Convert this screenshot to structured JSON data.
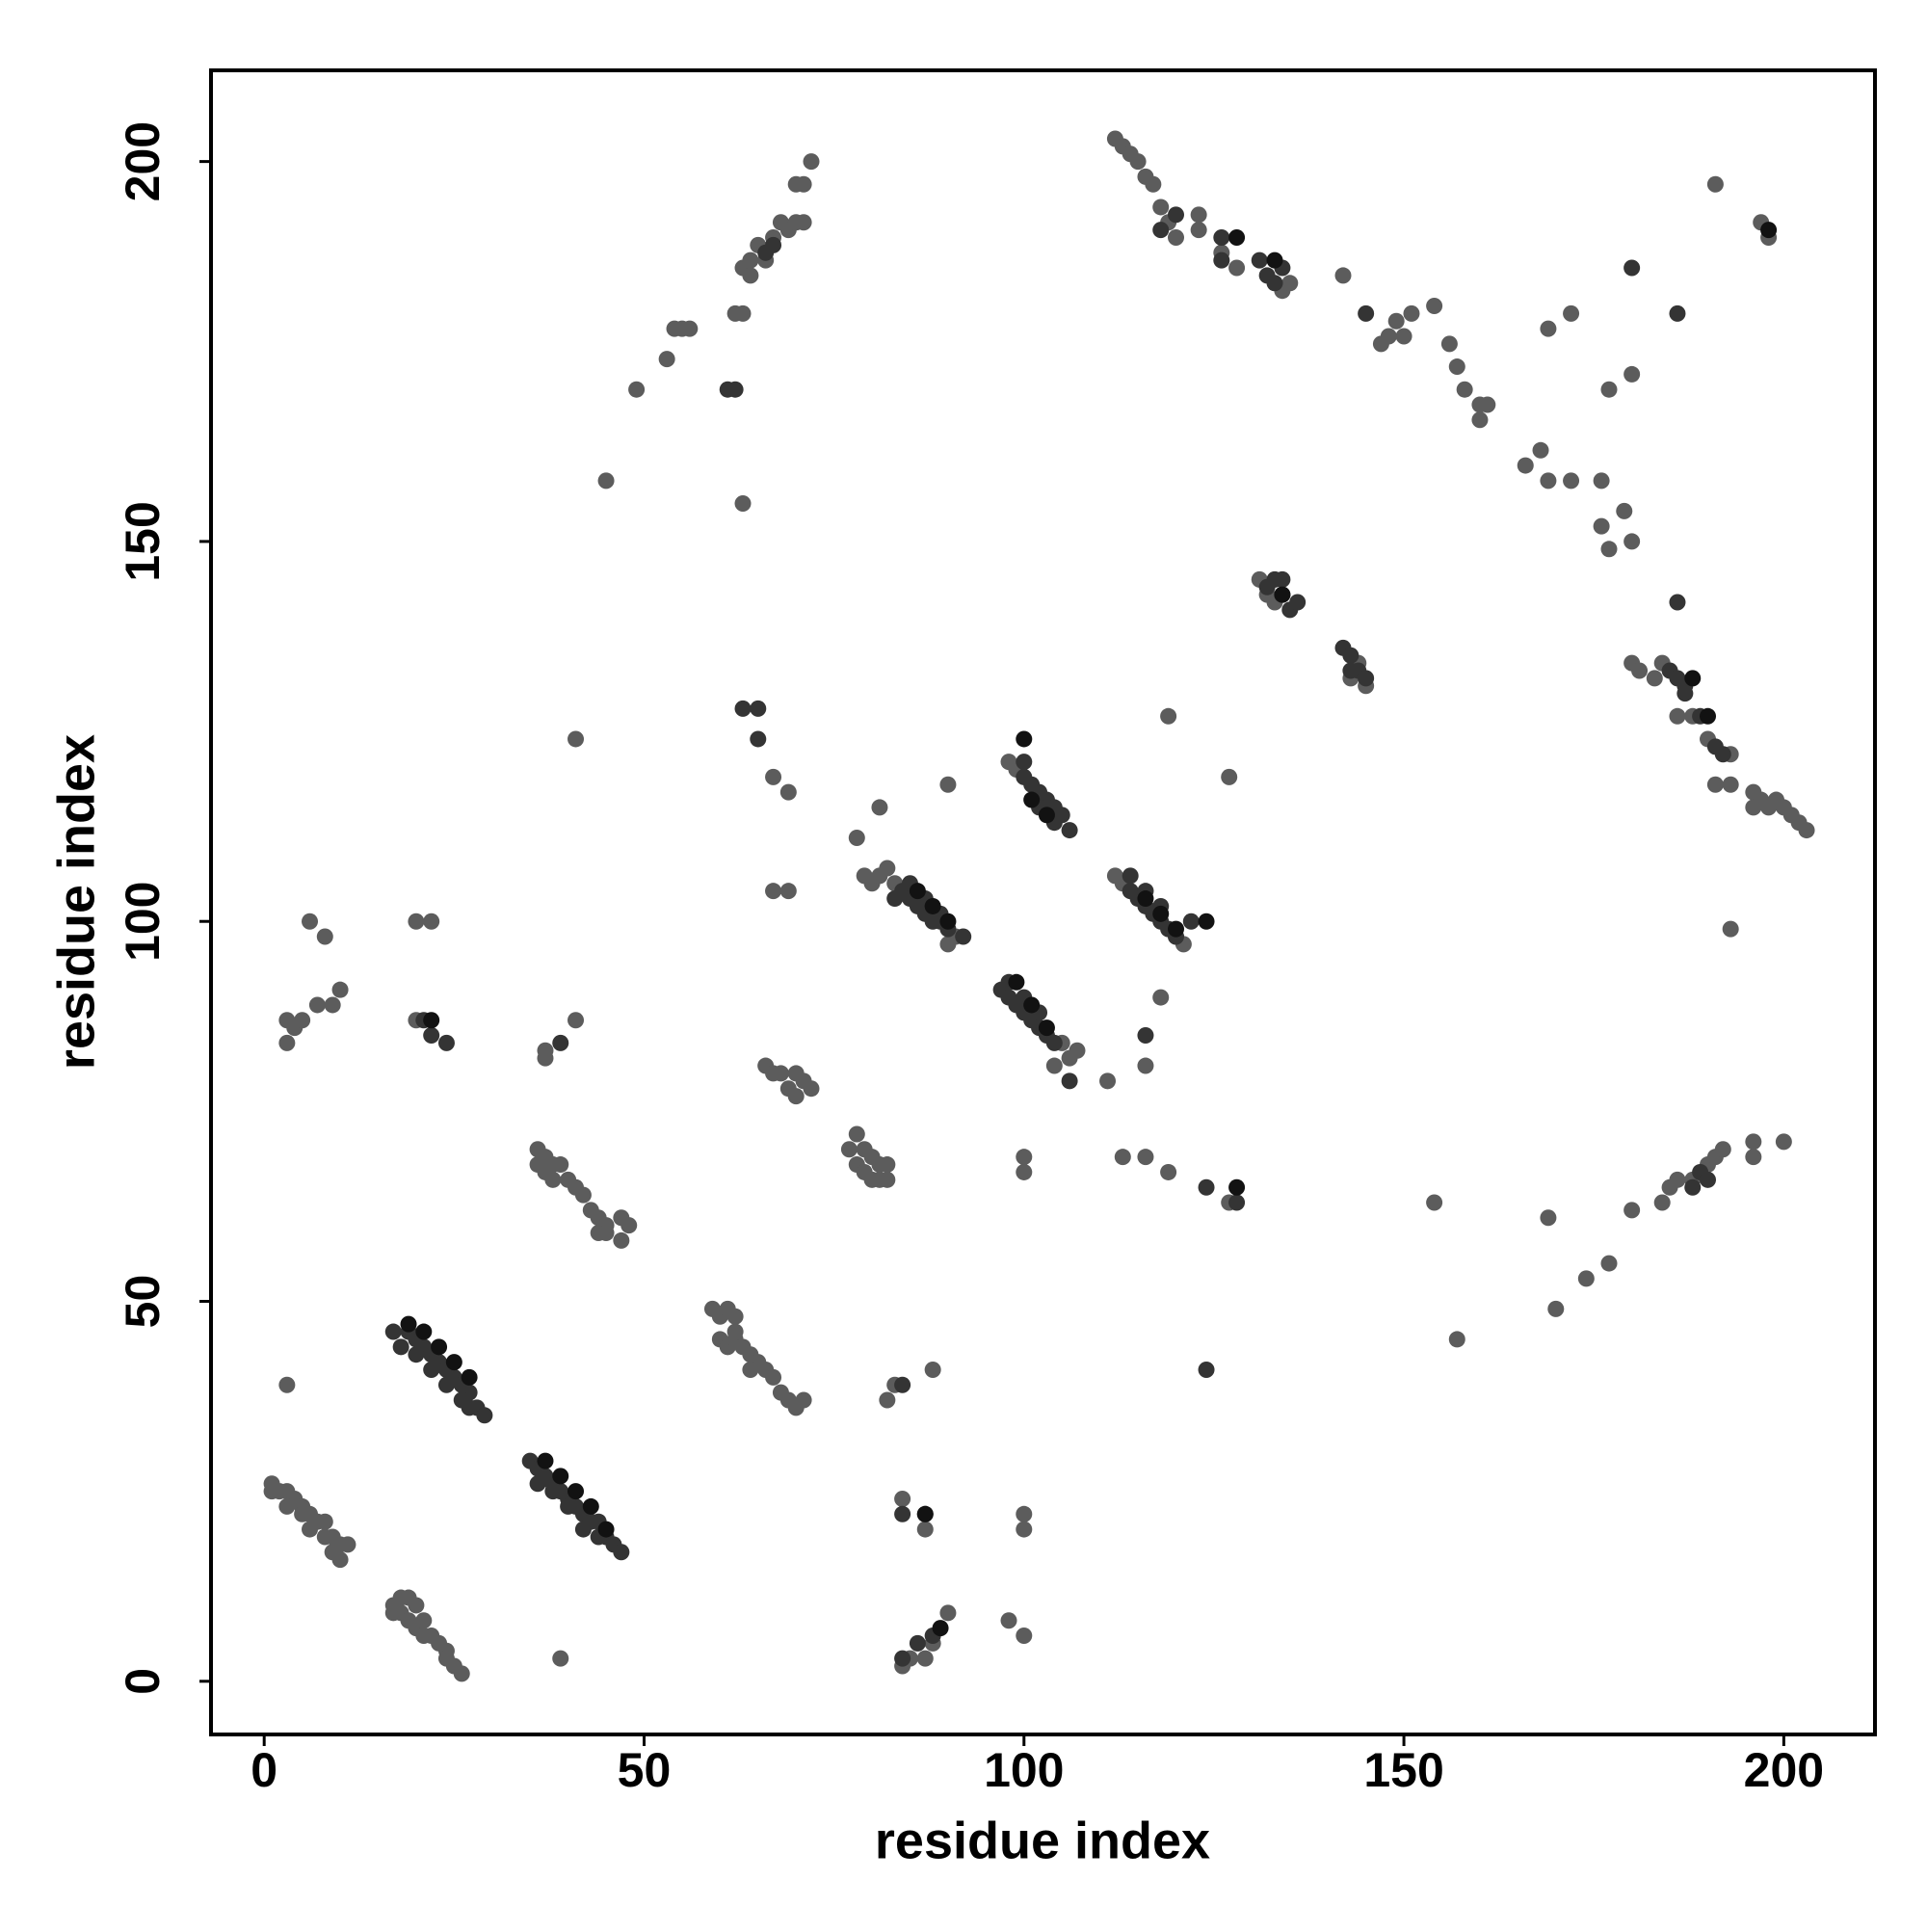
{
  "chart_data": {
    "type": "scatter",
    "x_label": "residue index",
    "y_label": "residue index",
    "xlim": [
      -7,
      212
    ],
    "ylim": [
      -7,
      212
    ],
    "xticks": [
      0,
      50,
      100,
      150,
      200
    ],
    "yticks": [
      0,
      50,
      100,
      150,
      200
    ],
    "grid": false,
    "series": [
      {
        "color": "#5c5c5c",
        "x": [
          1,
          2,
          3,
          4,
          5,
          6,
          7,
          8,
          9,
          10,
          1,
          3,
          5,
          6,
          8,
          9,
          10,
          11,
          17,
          18,
          19,
          20,
          18,
          19,
          20,
          21,
          22,
          23,
          24,
          25,
          26,
          17,
          21,
          24,
          36,
          37,
          38,
          39,
          40,
          41,
          42,
          43,
          44,
          45,
          47,
          48,
          47,
          36,
          38,
          37,
          44,
          45,
          59,
          60,
          61,
          62,
          60,
          61,
          62,
          63,
          64,
          65,
          66,
          67,
          68,
          69,
          70,
          71,
          62,
          64,
          49,
          53,
          54,
          55,
          56,
          62,
          63,
          63,
          64,
          64,
          66,
          67,
          68,
          69,
          70,
          71,
          70,
          71,
          72,
          65,
          3,
          4,
          3,
          5,
          7,
          9,
          10,
          6,
          8,
          20,
          22,
          20,
          37,
          37,
          41,
          41,
          45,
          39,
          3,
          63,
          67,
          69,
          67,
          69,
          66,
          67,
          68,
          69,
          70,
          71,
          72,
          70,
          77,
          78,
          79,
          80,
          81,
          82,
          78,
          79,
          80,
          81,
          82,
          98,
          99,
          81,
          78,
          90,
          121,
          120,
          113,
          112,
          112,
          113,
          114,
          115,
          116,
          117,
          118,
          119,
          120,
          123,
          123,
          126,
          128,
          134,
          135,
          142,
          147,
          149,
          151,
          154,
          148,
          150,
          156,
          157,
          158,
          160,
          161,
          160,
          166,
          168,
          169,
          172,
          176,
          176,
          177,
          179,
          180,
          169,
          172,
          177,
          180,
          191,
          197,
          198,
          180,
          181,
          183,
          184,
          186,
          188,
          190,
          193,
          191,
          193,
          196,
          197,
          198,
          199,
          200,
          201,
          202,
          203,
          196,
          157,
          170,
          174,
          177,
          169,
          180,
          184,
          185,
          186,
          188,
          190,
          191,
          192,
          196,
          196,
          200,
          119,
          127,
          118,
          116,
          111,
          113,
          116,
          119,
          100,
          100,
          127,
          154,
          193,
          98,
          100,
          90,
          84,
          85,
          87,
          88,
          100,
          100,
          82,
          83,
          84,
          87,
          88,
          131,
          132,
          133,
          144,
          143,
          145,
          105,
          106,
          107,
          104,
          79,
          80,
          81,
          82,
          83,
          90,
          91
        ],
        "y": [
          26,
          25,
          25,
          24,
          23,
          22,
          21,
          21,
          19,
          18,
          25,
          23,
          22,
          20,
          19,
          17,
          16,
          18,
          10,
          11,
          11,
          10,
          9,
          8,
          7,
          8,
          6,
          5,
          4,
          2,
          1,
          9,
          6,
          3,
          70,
          69,
          68,
          68,
          66,
          65,
          64,
          62,
          61,
          60,
          61,
          60,
          58,
          68,
          66,
          67,
          59,
          59,
          49,
          48,
          49,
          48,
          45,
          44,
          45,
          44,
          43,
          42,
          41,
          40,
          38,
          37,
          36,
          37,
          46,
          41,
          170,
          174,
          178,
          178,
          178,
          180,
          180,
          186,
          185,
          187,
          187,
          190,
          192,
          191,
          192,
          192,
          197,
          197,
          200,
          189,
          84,
          86,
          87,
          87,
          89,
          89,
          91,
          100,
          98,
          100,
          100,
          87,
          82,
          83,
          87,
          124,
          158,
          3,
          39,
          155,
          104,
          104,
          119,
          117,
          81,
          80,
          80,
          78,
          80,
          79,
          78,
          77,
          70,
          72,
          70,
          69,
          68,
          68,
          68,
          67,
          66,
          66,
          66,
          121,
          120,
          115,
          111,
          118,
          97,
          98,
          105,
          106,
          203,
          202,
          201,
          200,
          198,
          197,
          194,
          192,
          190,
          193,
          191,
          188,
          186,
          183,
          184,
          185,
          176,
          179,
          180,
          181,
          177,
          177,
          176,
          173,
          170,
          168,
          168,
          166,
          160,
          162,
          158,
          158,
          158,
          152,
          149,
          154,
          150,
          178,
          180,
          170,
          172,
          197,
          192,
          190,
          134,
          133,
          132,
          134,
          127,
          127,
          124,
          122,
          118,
          118,
          117,
          116,
          115,
          116,
          115,
          114,
          113,
          112,
          115,
          45,
          49,
          53,
          55,
          61,
          62,
          63,
          65,
          66,
          66,
          68,
          69,
          70,
          71,
          69,
          71,
          127,
          119,
          90,
          81,
          79,
          69,
          69,
          67,
          69,
          67,
          63,
          63,
          99,
          8,
          6,
          9,
          2,
          3,
          3,
          5,
          22,
          20,
          37,
          39,
          24,
          20,
          41,
          145,
          143,
          142,
          134,
          132,
          131,
          84,
          82,
          83,
          81,
          106,
          105,
          106,
          107,
          105,
          97,
          98
        ]
      },
      {
        "color": "#343434",
        "x": [
          17,
          19,
          20,
          21,
          22,
          23,
          24,
          25,
          26,
          27,
          28,
          29,
          18,
          20,
          22,
          24,
          26,
          27,
          35,
          36,
          37,
          38,
          39,
          40,
          41,
          42,
          43,
          44,
          45,
          46,
          47,
          36,
          38,
          40,
          42,
          44,
          84,
          85,
          86,
          87,
          88,
          89,
          90,
          92,
          85,
          87,
          89,
          83,
          100,
          101,
          102,
          103,
          104,
          105,
          106,
          104,
          100,
          102,
          97,
          98,
          99,
          100,
          101,
          102,
          103,
          104,
          98,
          100,
          102,
          106,
          114,
          115,
          116,
          117,
          118,
          119,
          120,
          114,
          116,
          118,
          122,
          132,
          133,
          134,
          135,
          136,
          134,
          142,
          143,
          144,
          145,
          143,
          118,
          120,
          126,
          126,
          131,
          132,
          133,
          134,
          145,
          180,
          186,
          186,
          63,
          65,
          65,
          61,
          62,
          21,
          22,
          24,
          39,
          66,
          67,
          84,
          86,
          88,
          84,
          87,
          84,
          124,
          124,
          128,
          116,
          185,
          186,
          187,
          189,
          191,
          192,
          187,
          188,
          189,
          190
        ],
        "y": [
          46,
          46,
          45,
          44,
          43,
          42,
          41,
          40,
          39,
          38,
          36,
          35,
          44,
          43,
          41,
          39,
          37,
          36,
          29,
          28,
          27,
          26,
          25,
          24,
          23,
          22,
          21,
          21,
          19,
          18,
          17,
          26,
          25,
          23,
          20,
          19,
          104,
          103,
          102,
          101,
          100,
          100,
          99,
          98,
          105,
          103,
          101,
          103,
          119,
          118,
          117,
          116,
          115,
          114,
          112,
          113,
          121,
          115,
          91,
          90,
          89,
          88,
          87,
          86,
          85,
          84,
          92,
          90,
          88,
          79,
          104,
          103,
          102,
          101,
          100,
          99,
          98,
          106,
          104,
          102,
          100,
          144,
          145,
          143,
          141,
          142,
          145,
          136,
          135,
          133,
          132,
          133,
          191,
          193,
          190,
          187,
          187,
          185,
          184,
          186,
          180,
          186,
          180,
          142,
          128,
          128,
          124,
          170,
          170,
          87,
          85,
          84,
          84,
          188,
          189,
          3,
          5,
          6,
          22,
          22,
          39,
          41,
          65,
          63,
          85,
          133,
          132,
          131,
          127,
          123,
          122,
          130,
          65,
          67,
          66
        ]
      },
      {
        "color": "#121212",
        "x": [
          19,
          21,
          23,
          25,
          27,
          37,
          39,
          41,
          43,
          45,
          86,
          88,
          90,
          100,
          101,
          103,
          99,
          101,
          103,
          116,
          118,
          120,
          124,
          128,
          128,
          133,
          188,
          190,
          22,
          89,
          87,
          198,
          134
        ],
        "y": [
          47,
          46,
          44,
          42,
          40,
          29,
          27,
          25,
          23,
          20,
          104,
          102,
          100,
          124,
          116,
          114,
          92,
          89,
          86,
          103,
          101,
          99,
          100,
          65,
          190,
          187,
          132,
          127,
          87,
          7,
          22,
          191,
          143
        ]
      }
    ]
  }
}
